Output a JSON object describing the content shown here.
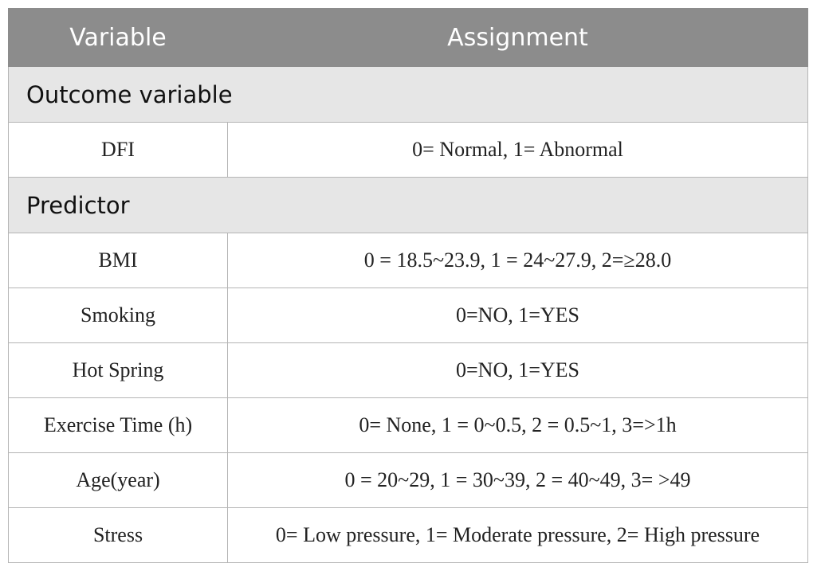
{
  "header": {
    "columns": [
      "Variable",
      "Assignment"
    ]
  },
  "sections": [
    {
      "title": "Outcome variable",
      "rows": [
        [
          "DFI",
          "0= Normal, 1= Abnormal"
        ]
      ]
    },
    {
      "title": "Predictor",
      "rows": [
        [
          "BMI",
          "0 = 18.5~23.9, 1 = 24~27.9, 2=≥28.0"
        ],
        [
          "Smoking",
          "0=NO, 1=YES"
        ],
        [
          "Hot Spring",
          "0=NO, 1=YES"
        ],
        [
          "Exercise Time (h)",
          "0= None, 1 = 0~0.5, 2 = 0.5~1, 3=>1h"
        ],
        [
          "Age(year)",
          "0 = 20~29, 1 = 30~39, 2 = 40~49, 3= >49"
        ],
        [
          "Stress",
          "0= Low pressure, 1= Moderate pressure, 2= High pressure"
        ]
      ]
    }
  ]
}
